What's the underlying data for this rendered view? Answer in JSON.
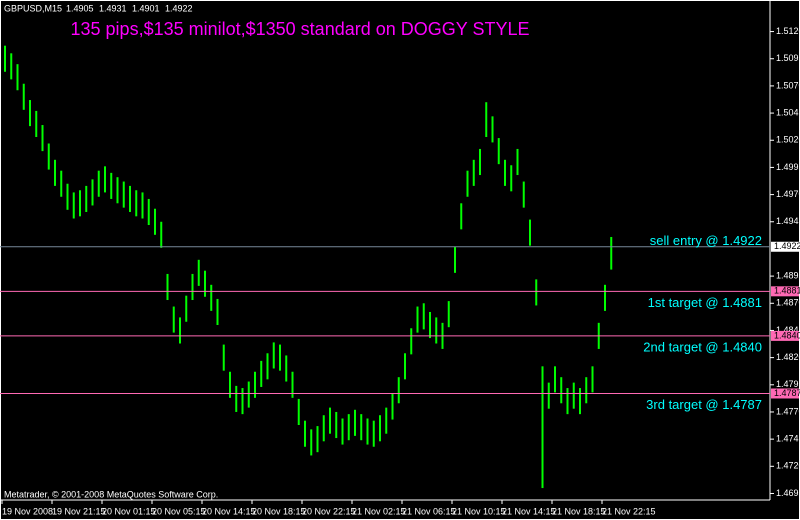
{
  "header": {
    "symbol": "GBPUSD,M15",
    "quote": [
      1.4905,
      1.4931,
      1.4901,
      1.4922
    ],
    "footer": "Metatrader, © 2001-2008 MetaQuotes Software Corp."
  },
  "chart_data": {
    "type": "ohlc",
    "title": "135 pips,$135 minilot,$1350 standard on DOGGY STYLE",
    "color": "#00ff00",
    "categories": [
      "19 Nov 2008",
      null,
      null,
      null,
      null,
      null,
      null,
      null,
      "19 Nov 21:15",
      null,
      null,
      null,
      null,
      null,
      null,
      null,
      "20 Nov 01:15",
      null,
      null,
      null,
      null,
      null,
      null,
      null,
      "20 Nov 05:15",
      null,
      null,
      null,
      null,
      null,
      null,
      null,
      "20 Nov 14:15",
      null,
      null,
      null,
      null,
      null,
      null,
      null,
      "20 Nov 18:15",
      null,
      null,
      null,
      null,
      null,
      null,
      null,
      "20 Nov 22:15",
      null,
      null,
      null,
      null,
      null,
      null,
      null,
      "21 Nov 02:15",
      null,
      null,
      null,
      null,
      null,
      null,
      null,
      "21 Nov 06:15",
      null,
      null,
      null,
      null,
      null,
      null,
      null,
      "21 Nov 10:15",
      null,
      null,
      null,
      null,
      null,
      null,
      null,
      "21 Nov 14:15",
      null,
      null,
      null,
      null,
      null,
      null,
      null,
      "21 Nov 18:15",
      null,
      null,
      null,
      null,
      null,
      null,
      null,
      "21 Nov 22:15",
      null
    ],
    "high": [
      1.5107,
      1.51,
      1.509,
      1.5072,
      1.5057,
      1.5047,
      1.5034,
      1.5017,
      1.5002,
      1.4992,
      1.498,
      1.4972,
      1.4974,
      1.4978,
      1.4984,
      1.4992,
      1.4996,
      1.499,
      1.4986,
      1.4982,
      1.4978,
      1.4974,
      1.4972,
      1.4966,
      1.4957,
      1.4945,
      1.4897,
      1.4867,
      1.4857,
      1.4877,
      1.4897,
      1.491,
      1.49,
      1.4887,
      1.4874,
      1.4832,
      1.4807,
      1.4794,
      1.4792,
      1.4798,
      1.4807,
      1.4817,
      1.4824,
      1.4834,
      1.4832,
      1.4822,
      1.4807,
      1.4782,
      1.4762,
      1.4754,
      1.4757,
      1.4767,
      1.4774,
      1.477,
      1.4764,
      1.4768,
      1.4772,
      1.4768,
      1.4764,
      1.4762,
      1.4767,
      1.4774,
      1.4787,
      1.4802,
      1.4824,
      1.4847,
      1.4867,
      1.487,
      1.4862,
      1.4857,
      1.4852,
      1.4872,
      1.4922,
      1.4962,
      1.4992,
      1.5002,
      1.5012,
      1.5055,
      1.5042,
      1.5022,
      1.5002,
      1.4997,
      1.5012,
      1.4982,
      1.4947,
      1.4892,
      1.4812,
      1.4797,
      1.4812,
      1.4802,
      1.4792,
      1.4797,
      1.4792,
      1.4802,
      1.4812,
      1.4852,
      1.4887,
      1.4931
    ],
    "low": [
      1.5083,
      1.5076,
      1.5066,
      1.5048,
      1.5033,
      1.5023,
      1.501,
      1.4993,
      1.4978,
      1.4968,
      1.4956,
      1.4948,
      1.495,
      1.4954,
      1.496,
      1.4968,
      1.4972,
      1.4966,
      1.4962,
      1.4958,
      1.4954,
      1.495,
      1.4948,
      1.4942,
      1.4933,
      1.4921,
      1.4873,
      1.4843,
      1.4833,
      1.4853,
      1.4873,
      1.4886,
      1.4876,
      1.4863,
      1.485,
      1.4808,
      1.4783,
      1.477,
      1.4768,
      1.4774,
      1.4783,
      1.4793,
      1.48,
      1.481,
      1.4808,
      1.4798,
      1.4783,
      1.4758,
      1.4738,
      1.473,
      1.4733,
      1.4743,
      1.475,
      1.4746,
      1.474,
      1.4744,
      1.4748,
      1.4744,
      1.474,
      1.4738,
      1.4743,
      1.475,
      1.4763,
      1.4778,
      1.48,
      1.4823,
      1.4843,
      1.4846,
      1.4838,
      1.4833,
      1.4828,
      1.4848,
      1.4898,
      1.4938,
      1.4968,
      1.4978,
      1.4988,
      1.5023,
      1.5018,
      1.4998,
      1.4978,
      1.4973,
      1.4988,
      1.4958,
      1.4923,
      1.4868,
      1.47,
      1.4773,
      1.4788,
      1.4778,
      1.4768,
      1.4773,
      1.4768,
      1.4778,
      1.4788,
      1.4828,
      1.4863,
      1.4901
    ],
    "ylim": [
      1.4689,
      1.5138
    ],
    "yticks": [
      {
        "value": 1.512,
        "label": "1.5120"
      },
      1.5095,
      {
        "value": 1.507,
        "label": "1.5070"
      },
      1.5045,
      {
        "value": 1.502,
        "label": "1.5020"
      },
      1.4995,
      {
        "value": 1.497,
        "label": "1.4970"
      },
      1.4945,
      1.4895,
      {
        "value": 1.487,
        "label": "1.4870"
      },
      1.4845,
      {
        "value": 1.482,
        "label": "1.4820"
      },
      1.4795,
      {
        "value": 1.477,
        "label": "1.4770"
      },
      1.4745,
      {
        "value": 1.472,
        "label": "1.4720"
      },
      1.4695
    ],
    "levels": [
      {
        "value": 1.4922,
        "label": "sell entry @ 1.4922",
        "price_label": "1.4922",
        "color": "#778899",
        "box_color": "#ffffff"
      },
      {
        "value": 1.4881,
        "label": "1st target @ 1.4881",
        "price_label": "1.4881",
        "color": "#ff69b4",
        "box_color": "#ff69b4"
      },
      {
        "value": 1.484,
        "label": "2nd target @ 1.4840",
        "price_label": "1.4840",
        "color": "#ff69b4",
        "box_color": "#ff69b4"
      },
      {
        "value": 1.4787,
        "label": "3rd target @ 1.4787",
        "price_label": "1.4787",
        "color": "#ff69b4",
        "box_color": "#ff69b4"
      }
    ],
    "label_color": "#00ffff",
    "title_color": "#ff00ff"
  }
}
